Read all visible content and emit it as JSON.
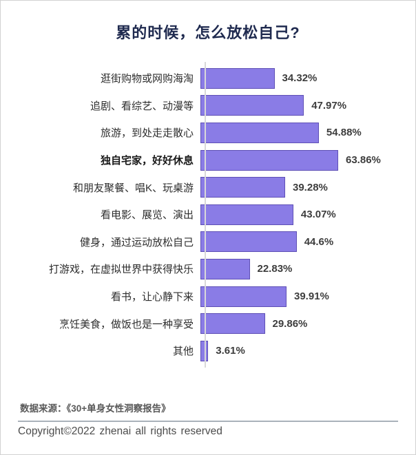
{
  "page": {
    "title": "累的时候，怎么放松自己?"
  },
  "chart_data": {
    "type": "bar",
    "orientation": "horizontal",
    "title": "累的时候，怎么放松自己?",
    "categories": [
      "逛街购物或网购海淘",
      "追剧、看综艺、动漫等",
      "旅游，到处走走散心",
      "独自宅家，好好休息",
      "和朋友聚餐、唱K、玩桌游",
      "看电影、展览、演出",
      "健身，通过运动放松自己",
      "打游戏，在虚拟世界中获得快乐",
      "看书，让心静下来",
      "烹饪美食，做饭也是一种享受",
      "其他"
    ],
    "values": [
      34.32,
      47.97,
      54.88,
      63.86,
      39.28,
      43.07,
      44.6,
      22.83,
      39.91,
      29.86,
      3.61
    ],
    "value_labels": [
      "34.32%",
      "47.97%",
      "54.88%",
      "63.86%",
      "39.28%",
      "43.07%",
      "44.6%",
      "22.83%",
      "39.91%",
      "29.86%",
      "3.61%"
    ],
    "emphasized_category_index": 3,
    "xlim": [
      0,
      63.86
    ],
    "value_suffix": "%",
    "bar_fill_color": "#8a7ce6",
    "bar_border_color": "#5e4fb5",
    "axis_line_color": "#d9d9d9",
    "legend": "none",
    "grid": "off"
  },
  "footer": {
    "source": "数据来源：《30+单身女性洞察报告》",
    "copyright": "Copyright©2022 zhenai all rights reserved"
  }
}
